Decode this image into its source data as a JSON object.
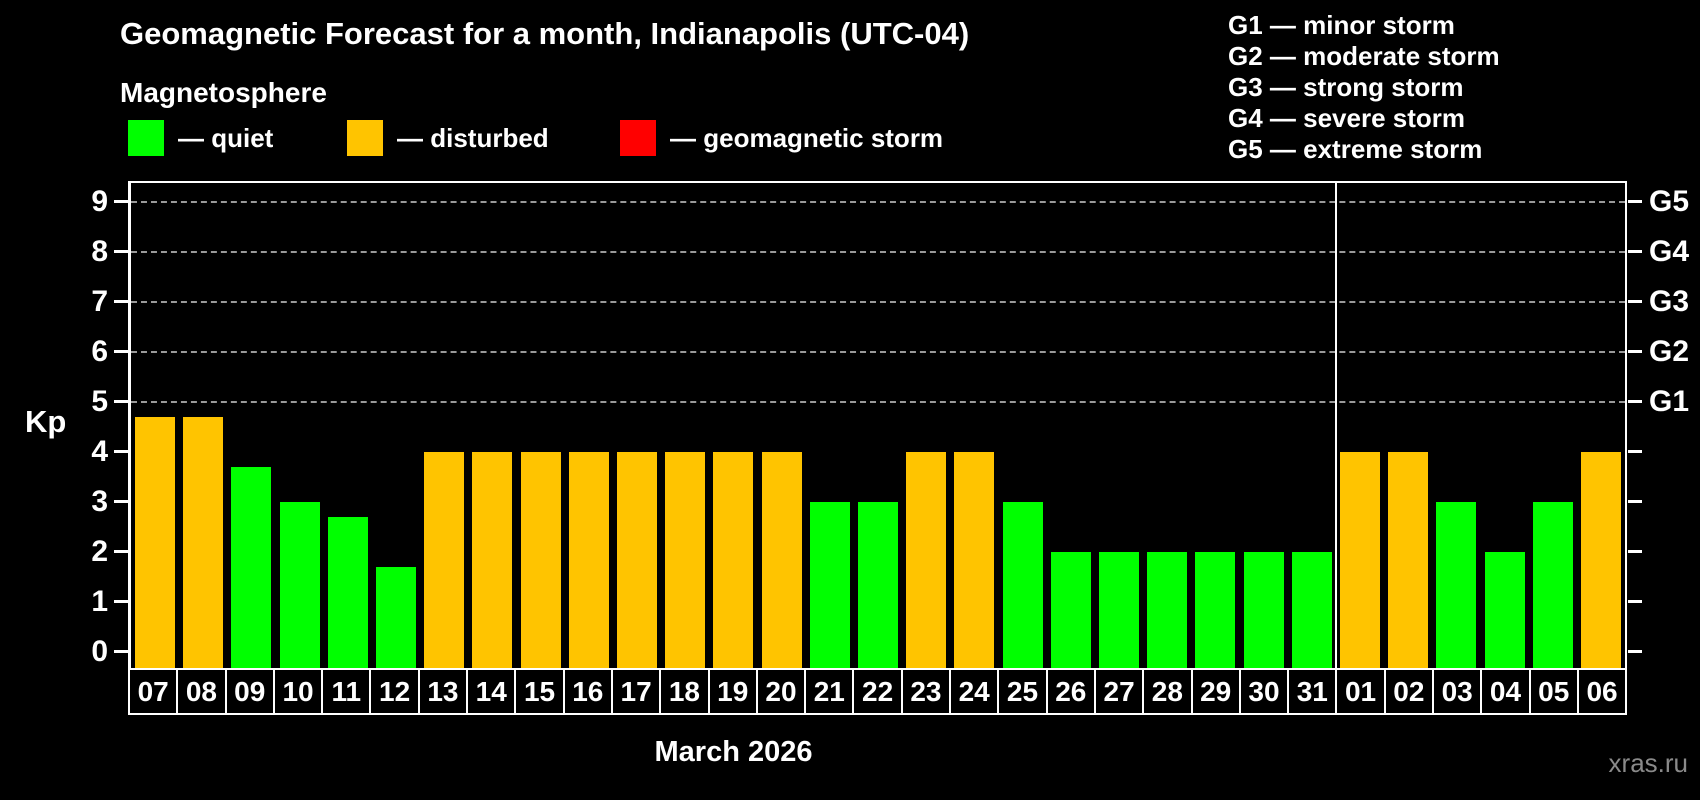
{
  "title": "Geomagnetic Forecast for a month, Indianapolis (UTC-04)",
  "watermark": "xras.ru",
  "colors": {
    "quiet": "#00ff00",
    "disturbed": "#ffc400",
    "storm": "#ff0000",
    "grid": "#9a9a9a",
    "axis": "#ffffff"
  },
  "legend": {
    "title": "Magnetosphere",
    "items": [
      {
        "name": "quiet",
        "label": "— quiet",
        "color": "#00ff00"
      },
      {
        "name": "disturbed",
        "label": "— disturbed",
        "color": "#ffc400"
      },
      {
        "name": "storm",
        "label": "— geomagnetic storm",
        "color": "#ff0000"
      }
    ]
  },
  "g_legend": {
    "lines": [
      "G1 — minor storm",
      "G2 — moderate storm",
      "G3 — strong storm",
      "G4 — severe storm",
      "G5 — extreme storm"
    ]
  },
  "chart_data": {
    "type": "bar",
    "title": "Geomagnetic Forecast for a month, Indianapolis (UTC-04)",
    "xlabel": "March 2026",
    "ylabel": "Kp",
    "ylim": [
      0,
      9.4
    ],
    "y_ticks": [
      0,
      1,
      2,
      3,
      4,
      5,
      6,
      7,
      8,
      9
    ],
    "gridlines_at": [
      5,
      6,
      7,
      8,
      9
    ],
    "right_axis": [
      {
        "value": 5,
        "label": "G1"
      },
      {
        "value": 6,
        "label": "G2"
      },
      {
        "value": 7,
        "label": "G3"
      },
      {
        "value": 8,
        "label": "G4"
      },
      {
        "value": 9,
        "label": "G5"
      }
    ],
    "legend_position": "top-left",
    "month_boundary_after_index": 24,
    "categories": [
      "07",
      "08",
      "09",
      "10",
      "11",
      "12",
      "13",
      "14",
      "15",
      "16",
      "17",
      "18",
      "19",
      "20",
      "21",
      "22",
      "23",
      "24",
      "25",
      "26",
      "27",
      "28",
      "29",
      "30",
      "31",
      "01",
      "02",
      "03",
      "04",
      "05",
      "06"
    ],
    "values": [
      4.7,
      4.7,
      3.7,
      3.0,
      2.7,
      1.7,
      4.0,
      4.0,
      4.0,
      4.0,
      4.0,
      4.0,
      4.0,
      4.0,
      3.0,
      3.0,
      4.0,
      4.0,
      3.0,
      2.0,
      2.0,
      2.0,
      2.0,
      2.0,
      2.0,
      4.0,
      4.0,
      3.0,
      2.0,
      3.0,
      4.0
    ],
    "states": [
      "disturbed",
      "disturbed",
      "quiet",
      "quiet",
      "quiet",
      "quiet",
      "disturbed",
      "disturbed",
      "disturbed",
      "disturbed",
      "disturbed",
      "disturbed",
      "disturbed",
      "disturbed",
      "quiet",
      "quiet",
      "disturbed",
      "disturbed",
      "quiet",
      "quiet",
      "quiet",
      "quiet",
      "quiet",
      "quiet",
      "quiet",
      "disturbed",
      "disturbed",
      "quiet",
      "quiet",
      "quiet",
      "disturbed"
    ]
  }
}
